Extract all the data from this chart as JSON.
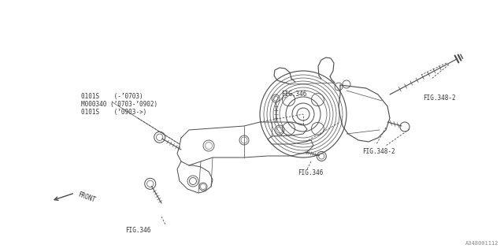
{
  "bg_color": "#ffffff",
  "line_color": "#4a4a4a",
  "text_color": "#333333",
  "part_number": "A348001112",
  "labels": {
    "fig346_top": "FIG.346",
    "fig346_mid": "FIG.346",
    "fig346_bot": "FIG.346",
    "fig348_2_top": "FIG.348-2",
    "fig348_2_mid": "FIG.348-2",
    "front": "FRONT",
    "part_codes_line1": "0101S    (-’0703)",
    "part_codes_line2": "M000340 (’0703-’0902)",
    "part_codes_line3": "0101S    (’0903->)"
  },
  "figsize": [
    6.4,
    3.2
  ],
  "dpi": 100
}
